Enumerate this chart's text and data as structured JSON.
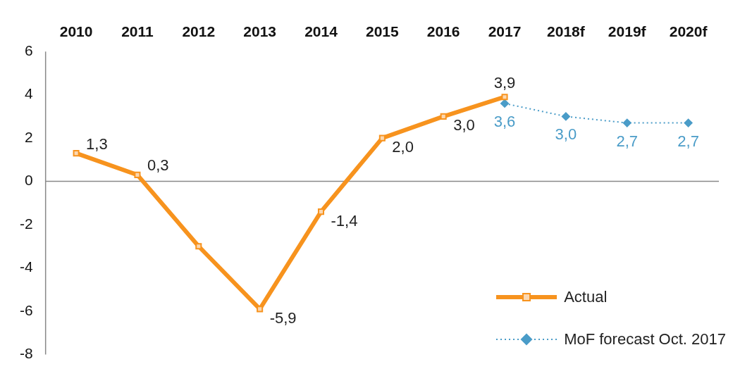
{
  "chart_data": {
    "type": "line",
    "categories": [
      "2010",
      "2011",
      "2012",
      "2013",
      "2014",
      "2015",
      "2016",
      "2017",
      "2018f",
      "2019f",
      "2020f"
    ],
    "series": [
      {
        "name": "Actual",
        "color": "#f7931e",
        "marker": "square",
        "line_style": "solid",
        "values": [
          1.3,
          0.3,
          -3.0,
          -5.9,
          -1.4,
          2.0,
          3.0,
          3.9,
          null,
          null,
          null
        ],
        "value_labels": [
          "1,3",
          "0,3",
          null,
          "-5,9",
          "-1,4",
          "2,0",
          "3,0",
          "3,9",
          null,
          null,
          null
        ]
      },
      {
        "name": "MoF forecast Oct. 2017",
        "color": "#4a9cc8",
        "marker": "diamond",
        "line_style": "dotted",
        "values": [
          null,
          null,
          null,
          null,
          null,
          null,
          null,
          3.6,
          3.0,
          2.7,
          2.7
        ],
        "value_labels": [
          null,
          null,
          null,
          null,
          null,
          null,
          null,
          "3,6",
          "3,0",
          "2,7",
          "2,7"
        ]
      }
    ],
    "ylim": [
      -8,
      6
    ],
    "yticks": [
      -8,
      -6,
      -4,
      -2,
      0,
      2,
      4,
      6
    ],
    "legend": "bottom right",
    "grid": false,
    "ref_lines": [
      {
        "axis": "y",
        "value": 0,
        "color": "#888888"
      }
    ]
  }
}
